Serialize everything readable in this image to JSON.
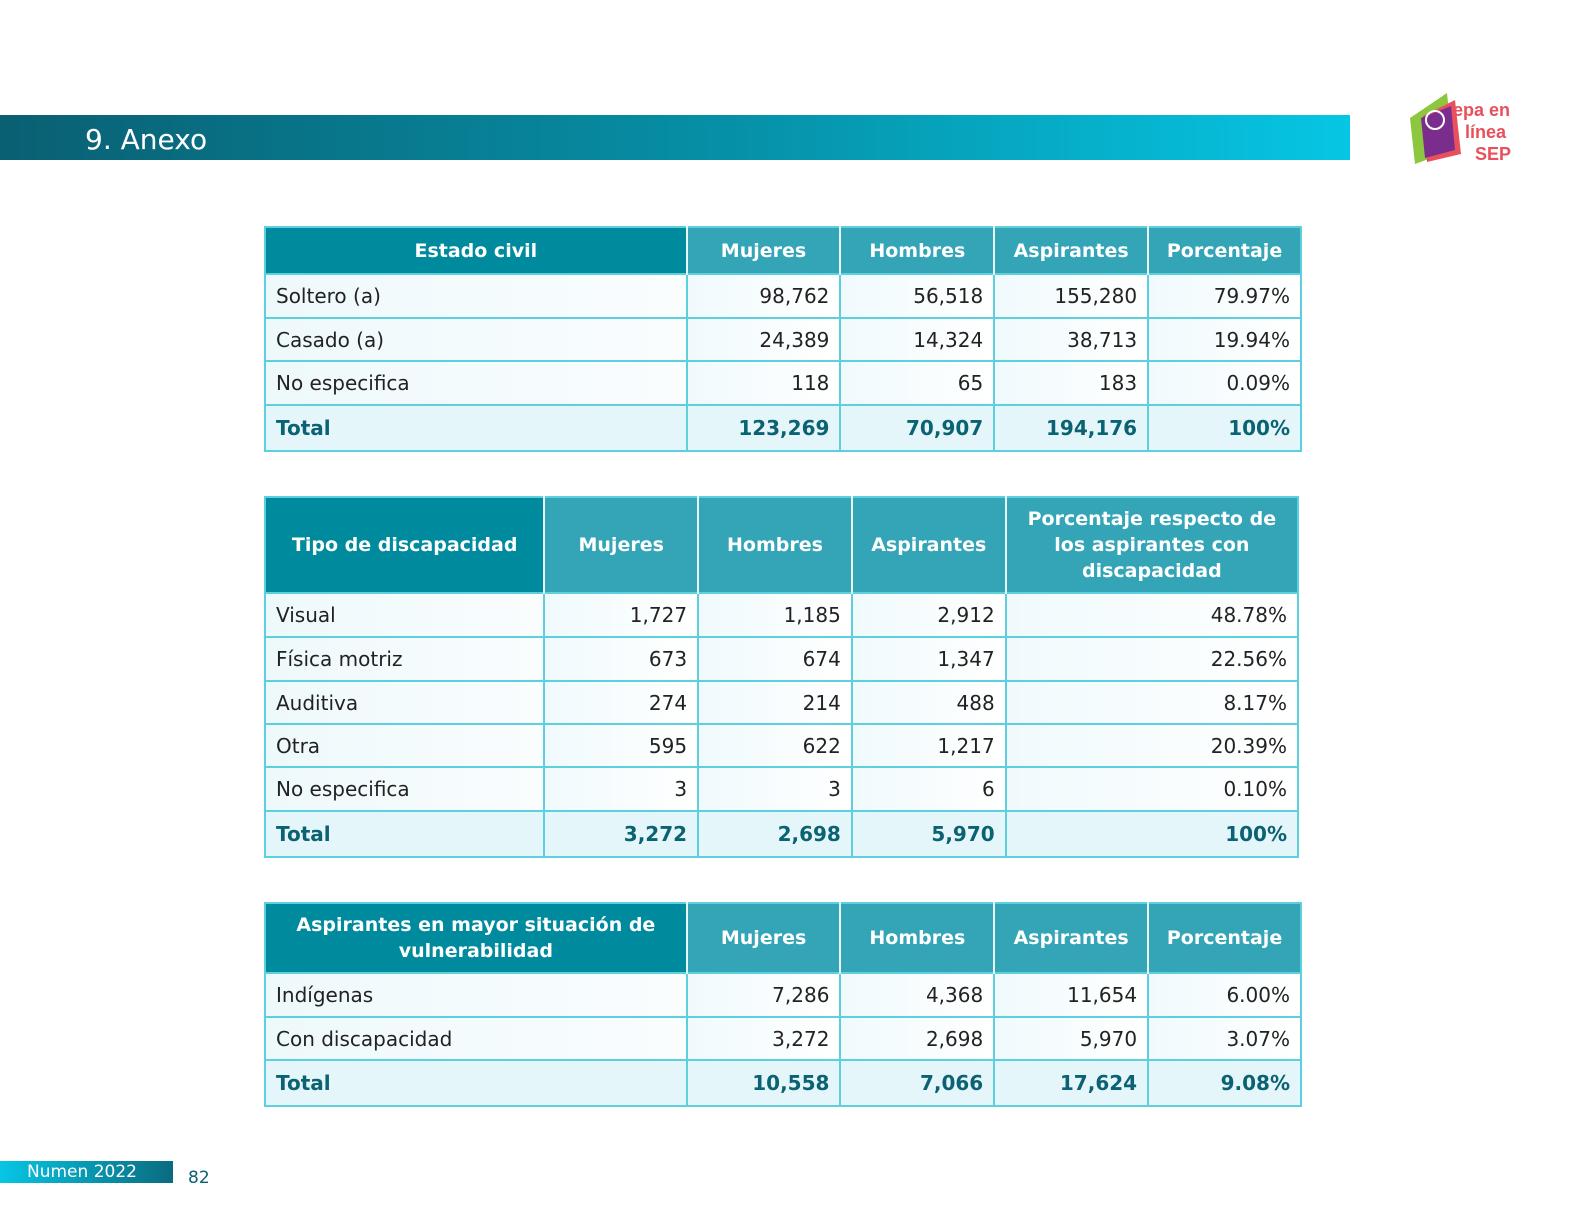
{
  "header": {
    "title": "9. Anexo"
  },
  "logo": {
    "text": "Prepa en línea SEP",
    "colors": {
      "green": "#8dc63f",
      "purple": "#7b2d8e",
      "red": "#e8505b"
    }
  },
  "colors": {
    "header_dark": "#008a9e",
    "header_light": "#33a5b7",
    "border": "#5dd0e0",
    "total_text": "#0a6272"
  },
  "tables": [
    {
      "headers": [
        "Estado civil",
        "Mujeres",
        "Hombres",
        "Aspirantes",
        "Porcentaje"
      ],
      "rows": [
        [
          "Soltero (a)",
          "98,762",
          "56,518",
          "155,280",
          "79.97%"
        ],
        [
          "Casado (a)",
          "24,389",
          "14,324",
          "38,713",
          "19.94%"
        ],
        [
          "No especifica",
          "118",
          "65",
          "183",
          "0.09%"
        ]
      ],
      "total": [
        "Total",
        "123,269",
        "70,907",
        "194,176",
        "100%"
      ]
    },
    {
      "headers": [
        "Tipo de discapacidad",
        "Mujeres",
        "Hombres",
        "Aspirantes",
        "Porcentaje respecto de los aspirantes con discapacidad"
      ],
      "rows": [
        [
          "Visual",
          "1,727",
          "1,185",
          "2,912",
          "48.78%"
        ],
        [
          "Física motriz",
          "673",
          "674",
          "1,347",
          "22.56%"
        ],
        [
          "Auditiva",
          "274",
          "214",
          "488",
          "8.17%"
        ],
        [
          "Otra",
          "595",
          "622",
          "1,217",
          "20.39%"
        ],
        [
          "No especifica",
          "3",
          "3",
          "6",
          "0.10%"
        ]
      ],
      "total": [
        "Total",
        "3,272",
        "2,698",
        "5,970",
        "100%"
      ]
    },
    {
      "headers": [
        "Aspirantes en mayor situación de vulnerabilidad",
        "Mujeres",
        "Hombres",
        "Aspirantes",
        "Porcentaje"
      ],
      "rows": [
        [
          "Indígenas",
          "7,286",
          "4,368",
          "11,654",
          "6.00%"
        ],
        [
          "Con discapacidad",
          "3,272",
          "2,698",
          "5,970",
          "3.07%"
        ]
      ],
      "total": [
        "Total",
        "10,558",
        "7,066",
        "17,624",
        "9.08%"
      ]
    }
  ],
  "footer": {
    "publication": "Numen 2022",
    "page": "82"
  }
}
